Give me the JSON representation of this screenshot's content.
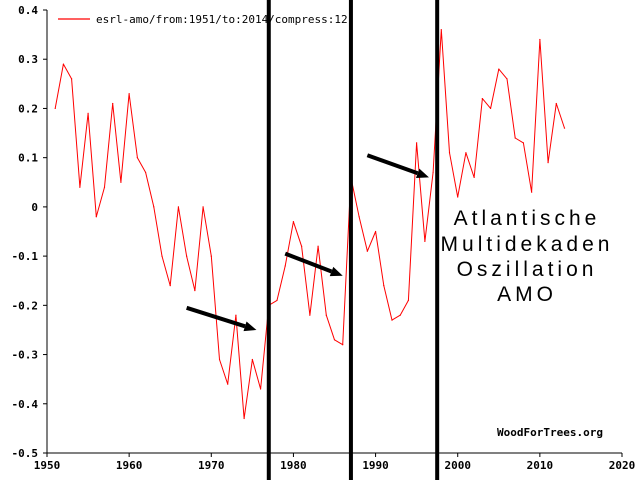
{
  "chart_data": {
    "type": "line",
    "colors": {
      "series": "#ff0000",
      "axis": "#000000",
      "markers": "#000000",
      "background": "#ffffff"
    },
    "xlim": [
      1950,
      2020
    ],
    "ylim": [
      -0.5,
      0.4
    ],
    "grid": false,
    "legend_position": "top-left",
    "x_ticks": [
      "1950",
      "1960",
      "1970",
      "1980",
      "1990",
      "2000",
      "2010",
      "2020"
    ],
    "y_ticks": [
      "0.4",
      "0.3",
      "0.2",
      "0.1",
      "0",
      "-0.1",
      "-0.2",
      "-0.3",
      "-0.4",
      "-0.5"
    ],
    "series": [
      {
        "name": "esrl-amo/from:1951/to:2014/compress:12",
        "x": [
          1951,
          1952,
          1953,
          1954,
          1955,
          1956,
          1957,
          1958,
          1959,
          1960,
          1961,
          1962,
          1963,
          1964,
          1965,
          1966,
          1967,
          1968,
          1969,
          1970,
          1971,
          1972,
          1973,
          1974,
          1975,
          1976,
          1977,
          1978,
          1979,
          1980,
          1981,
          1982,
          1983,
          1984,
          1985,
          1986,
          1987,
          1988,
          1989,
          1990,
          1991,
          1992,
          1993,
          1994,
          1995,
          1996,
          1997,
          1998,
          1999,
          2000,
          2001,
          2002,
          2003,
          2004,
          2005,
          2006,
          2007,
          2008,
          2009,
          2010,
          2011,
          2012,
          2013
        ],
        "values": [
          0.2,
          0.29,
          0.26,
          0.04,
          0.19,
          -0.02,
          0.04,
          0.21,
          0.05,
          0.23,
          0.1,
          0.07,
          0.0,
          -0.1,
          -0.16,
          0.0,
          -0.1,
          -0.17,
          0.0,
          -0.1,
          -0.31,
          -0.36,
          -0.22,
          -0.43,
          -0.31,
          -0.37,
          -0.2,
          -0.19,
          -0.12,
          -0.03,
          -0.08,
          -0.22,
          -0.08,
          -0.22,
          -0.27,
          -0.28,
          0.06,
          -0.02,
          -0.09,
          -0.05,
          -0.16,
          -0.23,
          -0.22,
          -0.19,
          0.13,
          -0.07,
          0.07,
          0.36,
          0.11,
          0.02,
          0.11,
          0.06,
          0.22,
          0.2,
          0.28,
          0.26,
          0.14,
          0.13,
          0.03,
          0.34,
          0.09,
          0.21,
          0.16
        ]
      }
    ],
    "markers": [
      1977,
      1987,
      1997.5
    ],
    "arrows": [
      {
        "from": [
          1967,
          -0.205
        ],
        "to": [
          1975.5,
          -0.25
        ]
      },
      {
        "from": [
          1979,
          -0.095
        ],
        "to": [
          1986,
          -0.14
        ]
      },
      {
        "from": [
          1989,
          0.105
        ],
        "to": [
          1996.5,
          0.06
        ]
      }
    ],
    "annotation": [
      "Atlantische",
      "Multidekaden",
      "Oszillation",
      "AMO"
    ],
    "credit": "WoodForTrees.org"
  }
}
